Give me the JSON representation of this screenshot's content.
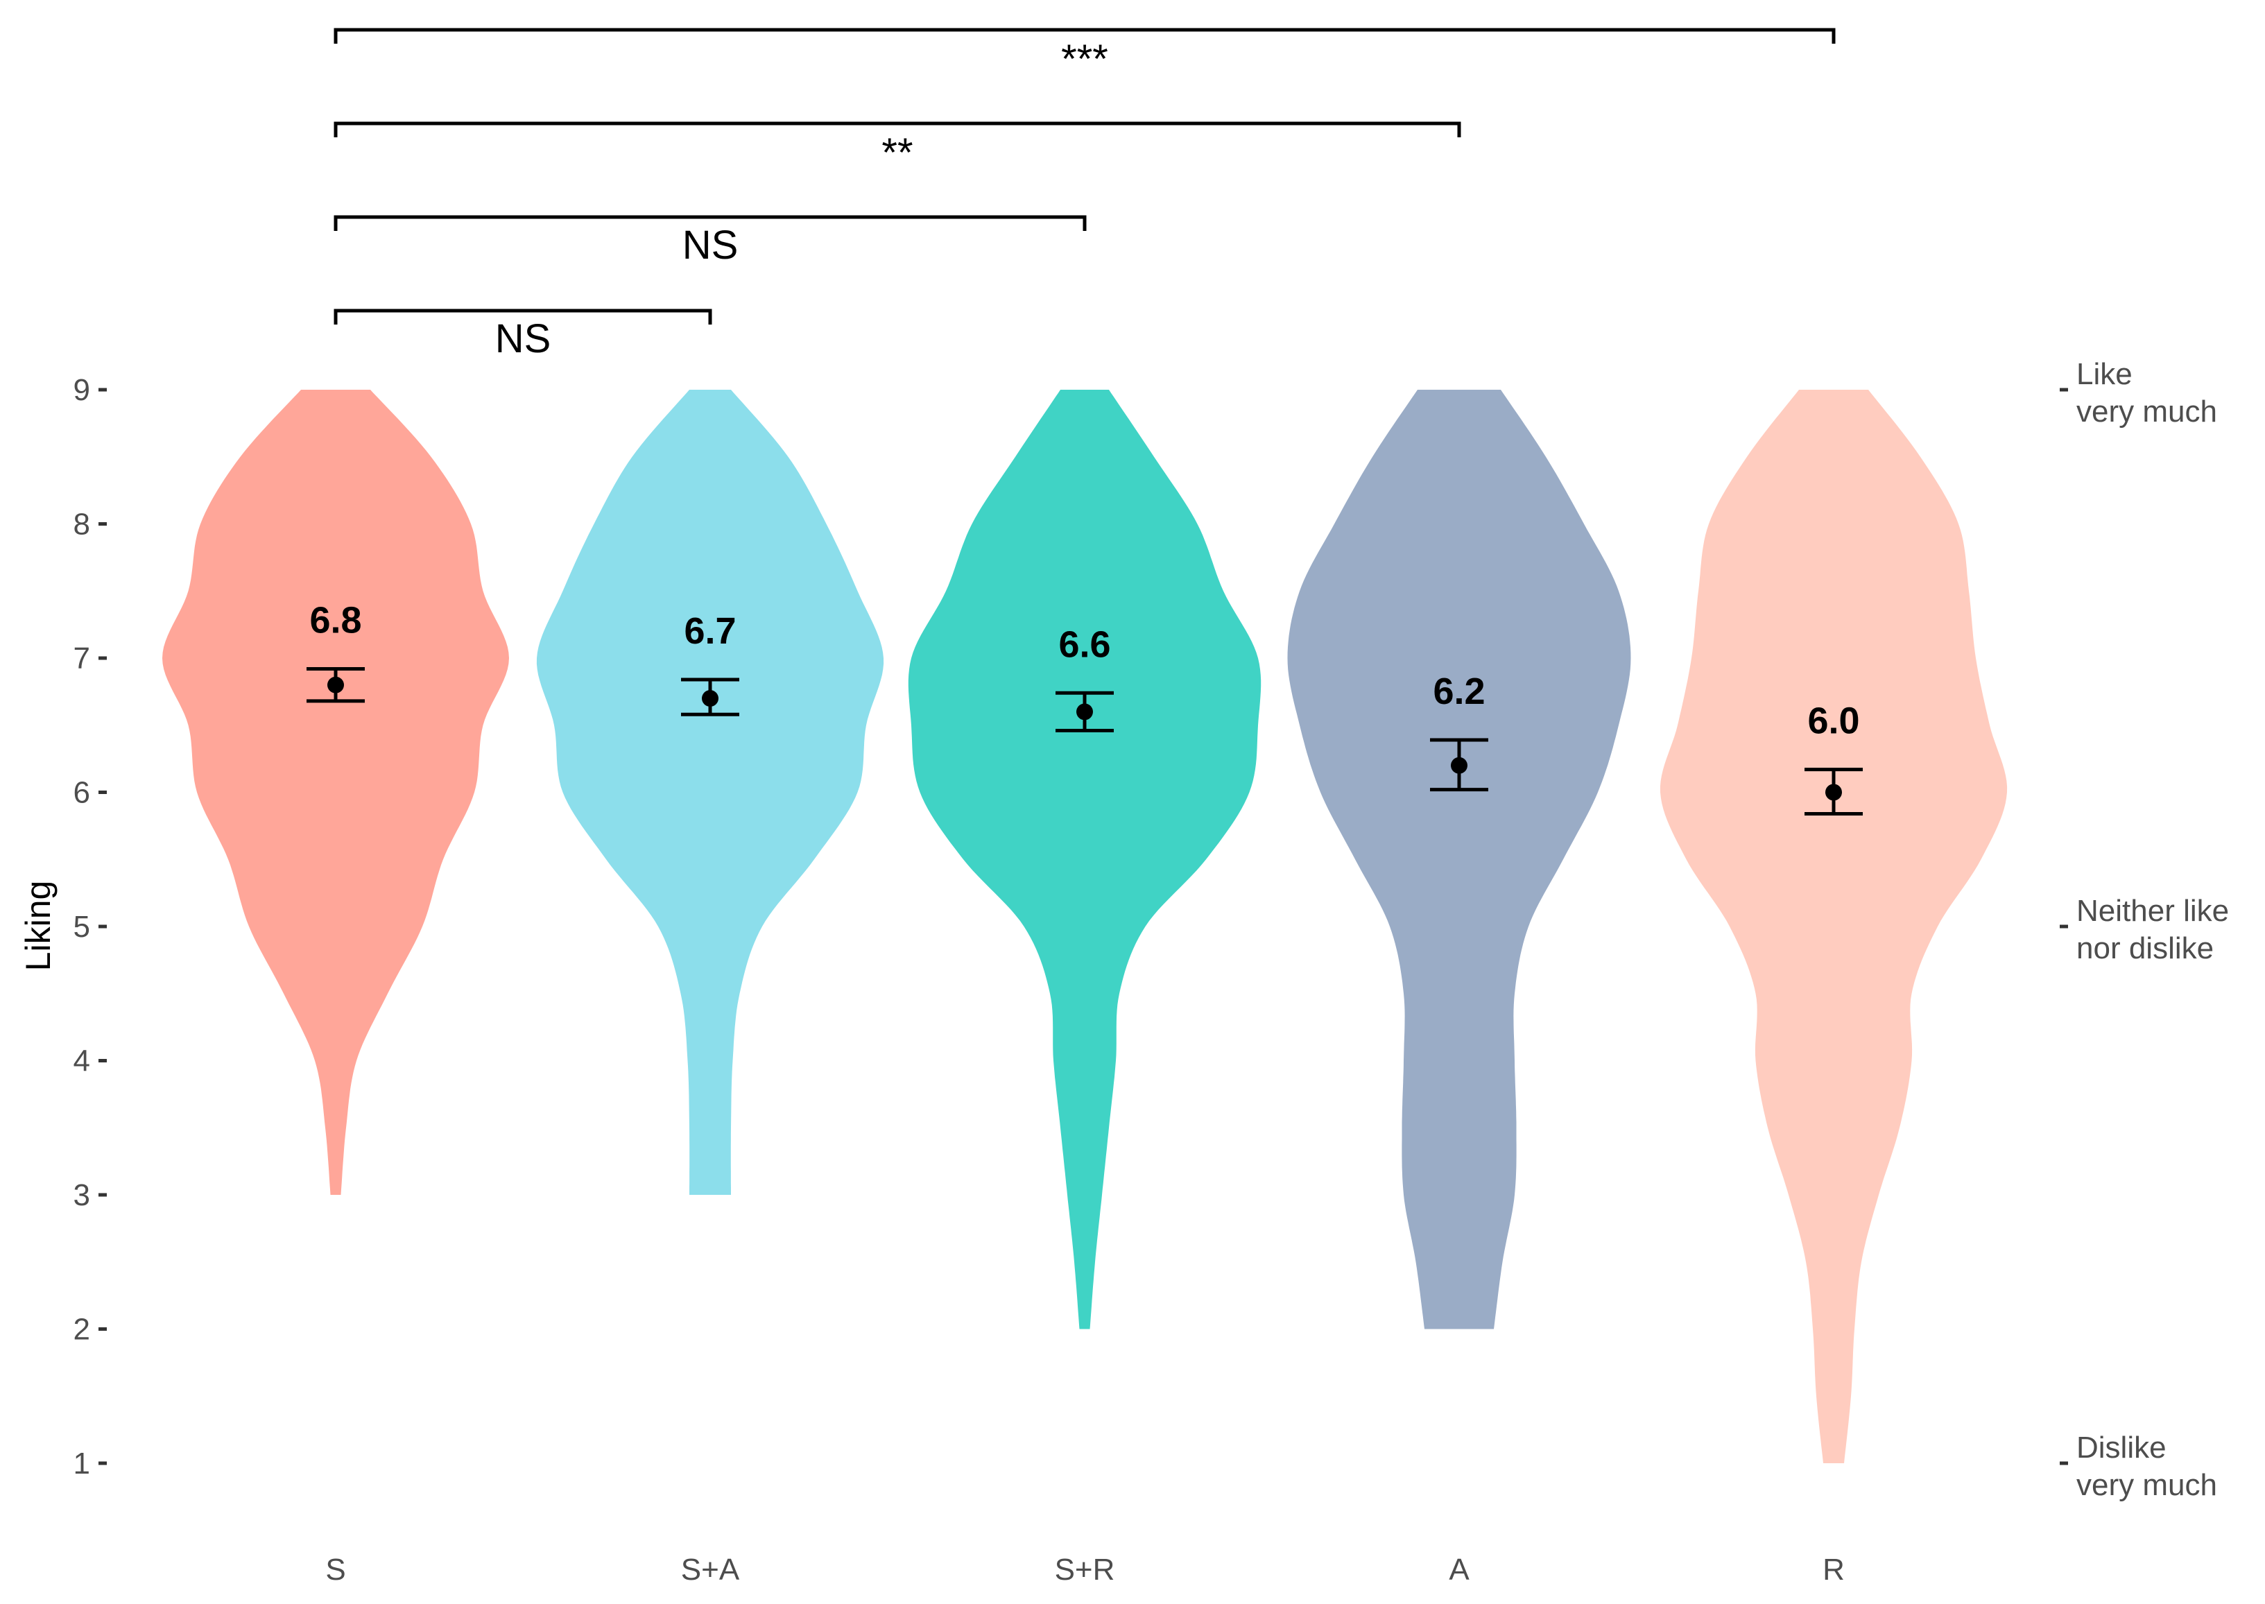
{
  "chart_data": {
    "type": "violin",
    "ylabel": "Liking",
    "xlabel": "",
    "ylim": [
      1,
      9
    ],
    "yticks": [
      1,
      2,
      3,
      4,
      5,
      6,
      7,
      8,
      9
    ],
    "categories": [
      "S",
      "S+A",
      "S+R",
      "A",
      "R"
    ],
    "series": [
      {
        "category": "S",
        "color": "#FFA699",
        "mean": 6.8,
        "mean_label": "6.8",
        "ci": [
          6.68,
          6.92
        ],
        "range": [
          3,
          9
        ],
        "density": [
          [
            3,
            0.03
          ],
          [
            3.5,
            0.06
          ],
          [
            4,
            0.12
          ],
          [
            4.5,
            0.3
          ],
          [
            5,
            0.5
          ],
          [
            5.5,
            0.62
          ],
          [
            6,
            0.8
          ],
          [
            6.5,
            0.85
          ],
          [
            7,
            1.0
          ],
          [
            7.5,
            0.85
          ],
          [
            8,
            0.78
          ],
          [
            8.5,
            0.55
          ],
          [
            9,
            0.2
          ]
        ]
      },
      {
        "category": "S+A",
        "color": "#8CDEEB",
        "mean": 6.7,
        "mean_label": "6.7",
        "ci": [
          6.58,
          6.84
        ],
        "range": [
          3,
          9
        ],
        "density": [
          [
            3,
            0.12
          ],
          [
            3.5,
            0.12
          ],
          [
            4,
            0.13
          ],
          [
            4.5,
            0.17
          ],
          [
            5,
            0.3
          ],
          [
            5.5,
            0.6
          ],
          [
            6,
            0.85
          ],
          [
            6.5,
            0.9
          ],
          [
            7,
            1.0
          ],
          [
            7.5,
            0.85
          ],
          [
            8,
            0.67
          ],
          [
            8.5,
            0.45
          ],
          [
            9,
            0.12
          ]
        ]
      },
      {
        "category": "S+R",
        "color": "#40D3C5",
        "mean": 6.6,
        "mean_label": "6.6",
        "ci": [
          6.46,
          6.74
        ],
        "range": [
          2,
          9
        ],
        "density": [
          [
            2,
            0.03
          ],
          [
            2.5,
            0.06
          ],
          [
            3,
            0.1
          ],
          [
            3.5,
            0.14
          ],
          [
            4,
            0.18
          ],
          [
            4.5,
            0.2
          ],
          [
            5,
            0.35
          ],
          [
            5.5,
            0.7
          ],
          [
            6,
            0.95
          ],
          [
            6.5,
            1.0
          ],
          [
            7,
            1.0
          ],
          [
            7.5,
            0.8
          ],
          [
            8,
            0.65
          ],
          [
            8.5,
            0.4
          ],
          [
            9,
            0.14
          ]
        ]
      },
      {
        "category": "A",
        "color": "#9AACC6",
        "mean": 6.2,
        "mean_label": "6.2",
        "ci": [
          6.02,
          6.39
        ],
        "range": [
          2,
          9
        ],
        "density": [
          [
            2,
            0.2
          ],
          [
            2.5,
            0.25
          ],
          [
            3,
            0.32
          ],
          [
            3.5,
            0.33
          ],
          [
            4,
            0.32
          ],
          [
            4.5,
            0.32
          ],
          [
            5,
            0.4
          ],
          [
            5.5,
            0.6
          ],
          [
            6,
            0.8
          ],
          [
            6.5,
            0.92
          ],
          [
            7,
            0.99
          ],
          [
            7.5,
            0.92
          ],
          [
            8,
            0.72
          ],
          [
            8.5,
            0.5
          ],
          [
            9,
            0.24
          ]
        ]
      },
      {
        "category": "R",
        "color": "#FFCCBF",
        "mean": 6.0,
        "mean_label": "6.0",
        "ci": [
          5.84,
          6.17
        ],
        "range": [
          1,
          9
        ],
        "density": [
          [
            1,
            0.06
          ],
          [
            1.5,
            0.1
          ],
          [
            2,
            0.12
          ],
          [
            2.5,
            0.16
          ],
          [
            3,
            0.26
          ],
          [
            3.5,
            0.38
          ],
          [
            4,
            0.45
          ],
          [
            4.5,
            0.45
          ],
          [
            5,
            0.6
          ],
          [
            5.5,
            0.85
          ],
          [
            6,
            1.0
          ],
          [
            6.5,
            0.9
          ],
          [
            7,
            0.82
          ],
          [
            7.5,
            0.78
          ],
          [
            8,
            0.72
          ],
          [
            8.5,
            0.5
          ],
          [
            9,
            0.2
          ]
        ]
      }
    ],
    "comparisons": [
      {
        "from": "S",
        "to": "S+A",
        "label": "NS"
      },
      {
        "from": "S",
        "to": "S+R",
        "label": "NS"
      },
      {
        "from": "S",
        "to": "A",
        "label": "**"
      },
      {
        "from": "S",
        "to": "R",
        "label": "***"
      }
    ],
    "right_axis_labels": [
      {
        "y": 9,
        "lines": [
          "Like",
          "very much"
        ]
      },
      {
        "y": 5,
        "lines": [
          "Neither like",
          "nor dislike"
        ]
      },
      {
        "y": 1,
        "lines": [
          "Dislike",
          "very much"
        ]
      }
    ]
  }
}
